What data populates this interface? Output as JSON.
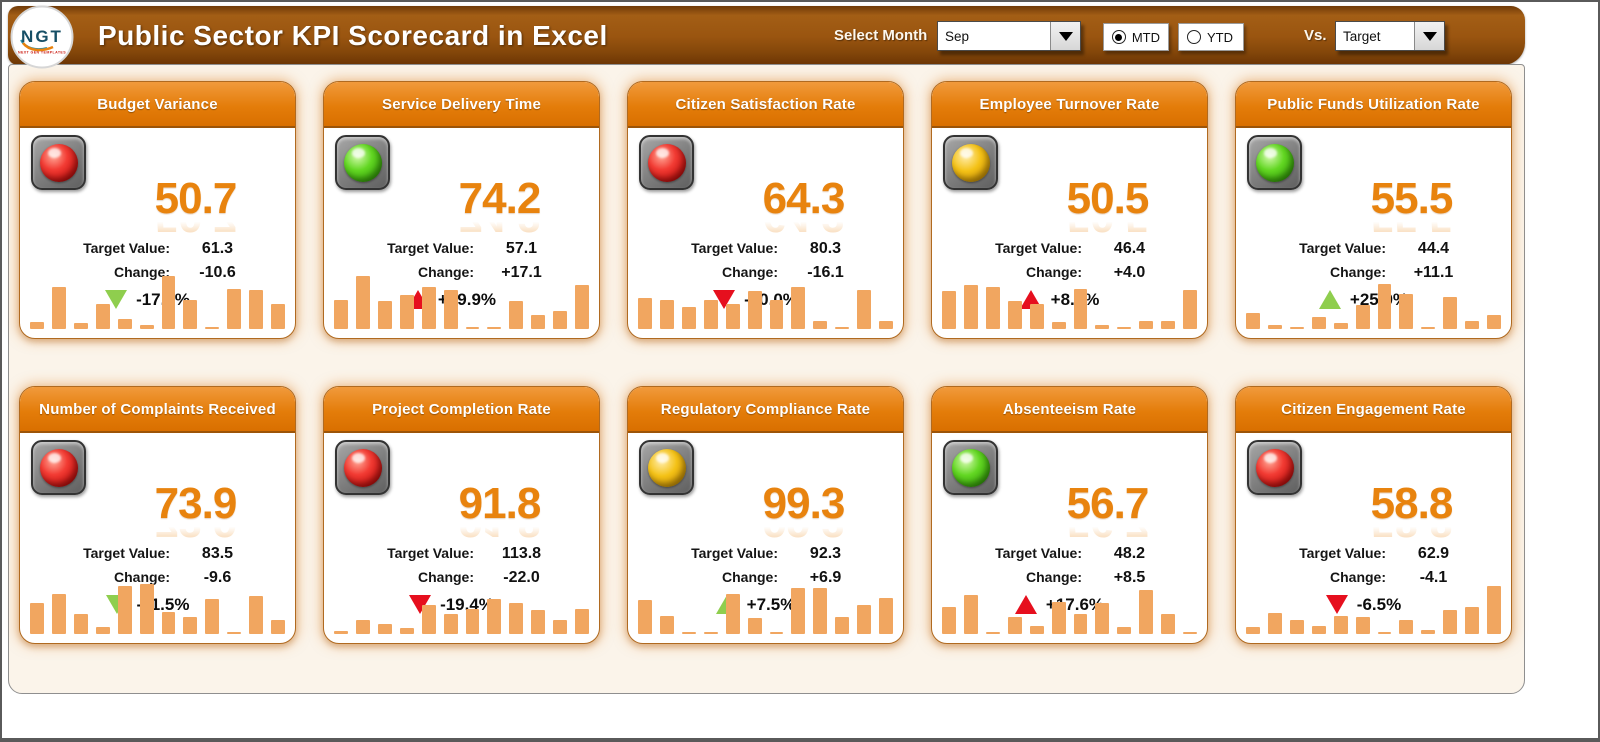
{
  "header": {
    "title": "Public Sector KPI Scorecard in Excel",
    "logo": {
      "text": "NGT",
      "subtext": "NEXT GEN TEMPLATES"
    },
    "select_month_label": "Select Month",
    "month_value": "Sep",
    "period_options": [
      {
        "label": "MTD",
        "selected": true
      },
      {
        "label": "YTD",
        "selected": false
      }
    ],
    "vs_label": "Vs.",
    "vs_value": "Target"
  },
  "labels": {
    "target": "Target Value:",
    "change": "Change:"
  },
  "colors": {
    "header_brown": "#9a5510",
    "card_header_orange": "#e47d0a",
    "accent_orange": "#e8830e",
    "spark_bar": "#f1a660",
    "trend_red": "#e60f1e",
    "trend_green": "#8fce4e",
    "light_red": "#e82222",
    "light_green": "#55d31f",
    "light_yellow": "#f2c31b"
  },
  "cards": [
    {
      "title": "Budget Variance",
      "status": "red",
      "value": "50.7",
      "target": "61.3",
      "change": "-10.6",
      "pct": "-17.4%",
      "trend": "down",
      "trend_color": "green",
      "bars": [
        12,
        75,
        10,
        45,
        17,
        8,
        95,
        52,
        3,
        72,
        70,
        45
      ]
    },
    {
      "title": "Service Delivery Time",
      "status": "green",
      "value": "74.2",
      "target": "57.1",
      "change": "+17.1",
      "pct": "+29.9%",
      "trend": "up",
      "trend_color": "red",
      "bars": [
        52,
        95,
        50,
        60,
        75,
        70,
        3,
        3,
        50,
        25,
        33,
        78
      ]
    },
    {
      "title": "Citizen Satisfaction Rate",
      "status": "red",
      "value": "64.3",
      "target": "80.3",
      "change": "-16.1",
      "pct": "-20.0%",
      "trend": "down",
      "trend_color": "red",
      "bars": [
        55,
        52,
        40,
        52,
        45,
        68,
        52,
        75,
        15,
        3,
        70,
        15
      ]
    },
    {
      "title": "Employee Turnover Rate",
      "status": "yellow",
      "value": "50.5",
      "target": "46.4",
      "change": "+4.0",
      "pct": "+8.7%",
      "trend": "up",
      "trend_color": "red",
      "bars": [
        68,
        78,
        75,
        50,
        45,
        12,
        72,
        7,
        3,
        15,
        15,
        70
      ]
    },
    {
      "title": "Public Funds Utilization Rate",
      "status": "green",
      "value": "55.5",
      "target": "44.4",
      "change": "+11.1",
      "pct": "+25.0%",
      "trend": "up",
      "trend_color": "green",
      "bars": [
        28,
        7,
        3,
        22,
        10,
        42,
        80,
        62,
        3,
        58,
        15,
        25
      ]
    },
    {
      "title": "Number of Complaints Received",
      "status": "red",
      "value": "73.9",
      "target": "83.5",
      "change": "-9.6",
      "pct": "-11.5%",
      "trend": "down",
      "trend_color": "green",
      "bars": [
        55,
        72,
        35,
        12,
        85,
        90,
        40,
        30,
        62,
        3,
        68,
        25
      ]
    },
    {
      "title": "Project Completion Rate",
      "status": "red",
      "value": "91.8",
      "target": "113.8",
      "change": "-22.0",
      "pct": "-19.4%",
      "trend": "down",
      "trend_color": "red",
      "bars": [
        5,
        25,
        17,
        10,
        52,
        35,
        45,
        62,
        55,
        42,
        25,
        45
      ]
    },
    {
      "title": "Regulatory Compliance Rate",
      "status": "yellow",
      "value": "99.3",
      "target": "92.3",
      "change": "+6.9",
      "pct": "+7.5%",
      "trend": "up",
      "trend_color": "green",
      "bars": [
        60,
        32,
        3,
        3,
        72,
        28,
        3,
        82,
        82,
        30,
        52,
        65
      ]
    },
    {
      "title": "Absenteeism Rate",
      "status": "green",
      "value": "56.7",
      "target": "48.2",
      "change": "+8.5",
      "pct": "+17.6%",
      "trend": "up",
      "trend_color": "red",
      "bars": [
        48,
        70,
        3,
        30,
        15,
        58,
        35,
        55,
        12,
        78,
        35,
        3
      ]
    },
    {
      "title": "Citizen Engagement Rate",
      "status": "red",
      "value": "58.8",
      "target": "62.9",
      "change": "-4.1",
      "pct": "-6.5%",
      "trend": "down",
      "trend_color": "red",
      "bars": [
        12,
        38,
        25,
        15,
        32,
        30,
        3,
        25,
        8,
        42,
        48,
        85
      ]
    }
  ]
}
